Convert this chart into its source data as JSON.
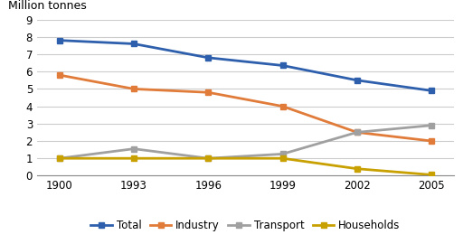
{
  "years": [
    "1900",
    "1993",
    "1996",
    "1999",
    "2002",
    "2005"
  ],
  "series": {
    "Total": {
      "values": [
        7.8,
        7.6,
        6.8,
        6.35,
        5.5,
        4.9
      ],
      "color": "#2E5FAC",
      "marker": "s",
      "linewidth": 2.0
    },
    "Industry": {
      "values": [
        5.8,
        5.0,
        4.8,
        4.0,
        2.5,
        2.0
      ],
      "color": "#E07B39",
      "marker": "s",
      "linewidth": 2.0
    },
    "Transport": {
      "values": [
        1.0,
        1.55,
        1.0,
        1.25,
        2.5,
        2.9
      ],
      "color": "#A0A0A0",
      "marker": "s",
      "linewidth": 2.0
    },
    "Households": {
      "values": [
        1.0,
        1.0,
        1.0,
        1.0,
        0.4,
        0.05
      ],
      "color": "#C8A000",
      "marker": "s",
      "linewidth": 2.0
    }
  },
  "ylabel": "Million tonnes",
  "ylim": [
    0,
    9
  ],
  "yticks": [
    0,
    1,
    2,
    3,
    4,
    5,
    6,
    7,
    8,
    9
  ],
  "background_color": "#ffffff",
  "grid_color": "#cccccc",
  "legend_order": [
    "Total",
    "Industry",
    "Transport",
    "Households"
  ]
}
